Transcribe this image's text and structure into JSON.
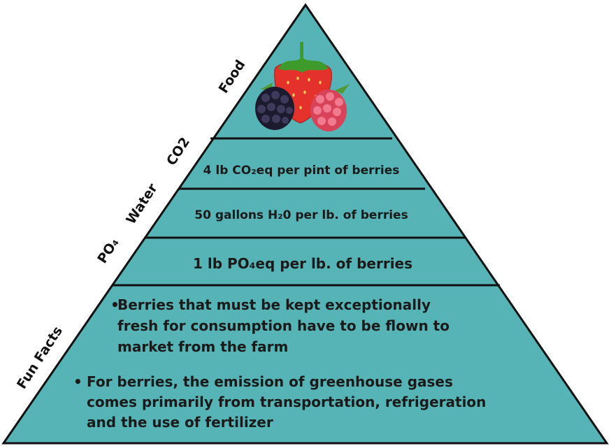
{
  "colors": {
    "pyramid_fill": "#57b4b6",
    "outline": "#111111",
    "text": "#1a1a1a"
  },
  "side_labels": {
    "food": "Food",
    "co2": "CO2",
    "water": "Water",
    "po4": "PO₄",
    "fun_facts": "Fun Facts"
  },
  "tiers": {
    "co2": "4 lb CO₂eq per pint of berries",
    "water": "50 gallons H₂0 per lb. of berries",
    "po4": "1 lb PO₄eq per lb. of berries"
  },
  "fun_facts": {
    "fact1": {
      "bullet": "•",
      "lines": [
        "Berries that must be kept exceptionally",
        "fresh for consumption have to be flown to",
        "market from the farm"
      ]
    },
    "fact2": {
      "bullet": "•",
      "lines": [
        "For berries, the emission of greenhouse gases",
        "comes primarily from transportation, refrigeration",
        "and the use of fertilizer"
      ]
    }
  },
  "image": {
    "icon": "berries-icon",
    "items": [
      "strawberry",
      "blackberry",
      "raspberry"
    ]
  }
}
